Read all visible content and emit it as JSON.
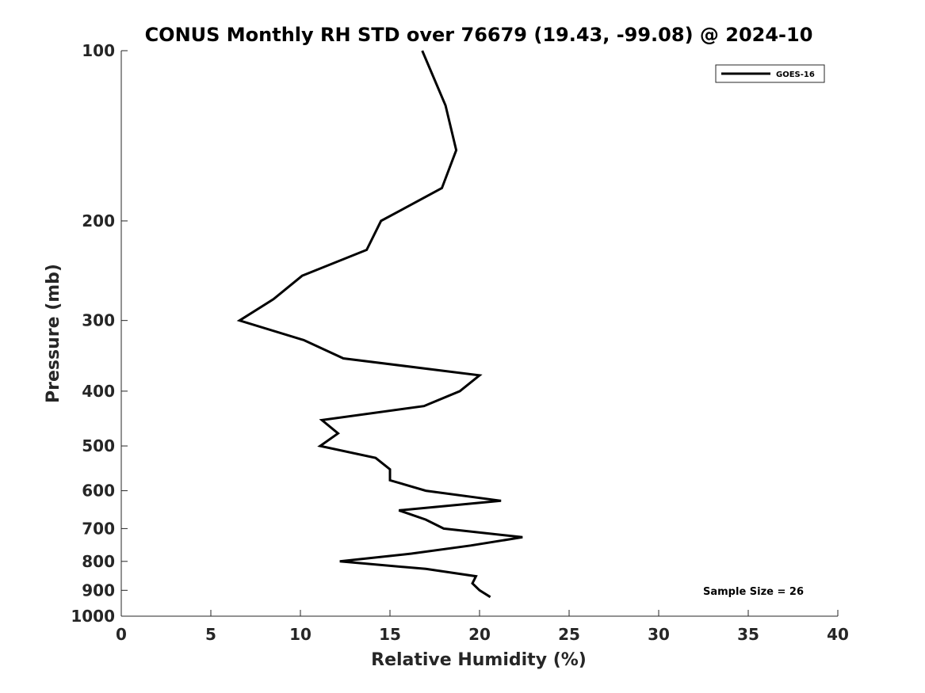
{
  "chart_data": {
    "type": "line",
    "title": "CONUS Monthly RH STD over 76679 (19.43, -99.08) @ 2024-10",
    "xlabel": "Relative Humidity (%)",
    "ylabel": "Pressure (mb)",
    "xlim": [
      0,
      40
    ],
    "ylim": [
      100,
      1000
    ],
    "y_scale": "log",
    "y_reversed": true,
    "x_ticks": [
      0,
      5,
      10,
      15,
      20,
      25,
      30,
      35,
      40
    ],
    "y_ticks": [
      100,
      200,
      300,
      400,
      500,
      600,
      700,
      800,
      900,
      1000
    ],
    "grid": false,
    "legend_position": "top-right",
    "annotation": "Sample Size = 26",
    "series": [
      {
        "name": "GOES-16",
        "color": "#000000",
        "points": [
          {
            "rh": 16.8,
            "p": 100
          },
          {
            "rh": 18.1,
            "p": 125
          },
          {
            "rh": 18.7,
            "p": 150
          },
          {
            "rh": 17.9,
            "p": 175
          },
          {
            "rh": 14.5,
            "p": 200
          },
          {
            "rh": 13.7,
            "p": 225
          },
          {
            "rh": 10.1,
            "p": 250
          },
          {
            "rh": 8.5,
            "p": 275
          },
          {
            "rh": 6.6,
            "p": 300
          },
          {
            "rh": 10.2,
            "p": 325
          },
          {
            "rh": 12.4,
            "p": 350
          },
          {
            "rh": 20.0,
            "p": 375
          },
          {
            "rh": 18.9,
            "p": 400
          },
          {
            "rh": 16.9,
            "p": 425
          },
          {
            "rh": 11.2,
            "p": 450
          },
          {
            "rh": 12.1,
            "p": 475
          },
          {
            "rh": 11.1,
            "p": 500
          },
          {
            "rh": 14.2,
            "p": 525
          },
          {
            "rh": 15.0,
            "p": 550
          },
          {
            "rh": 15.0,
            "p": 575
          },
          {
            "rh": 17.0,
            "p": 600
          },
          {
            "rh": 21.2,
            "p": 625
          },
          {
            "rh": 15.5,
            "p": 650
          },
          {
            "rh": 17.0,
            "p": 675
          },
          {
            "rh": 18.0,
            "p": 700
          },
          {
            "rh": 22.4,
            "p": 725
          },
          {
            "rh": 19.5,
            "p": 750
          },
          {
            "rh": 16.2,
            "p": 775
          },
          {
            "rh": 12.2,
            "p": 800
          },
          {
            "rh": 17.0,
            "p": 825
          },
          {
            "rh": 19.8,
            "p": 850
          },
          {
            "rh": 19.6,
            "p": 875
          },
          {
            "rh": 20.0,
            "p": 900
          },
          {
            "rh": 20.6,
            "p": 925
          }
        ]
      }
    ]
  }
}
